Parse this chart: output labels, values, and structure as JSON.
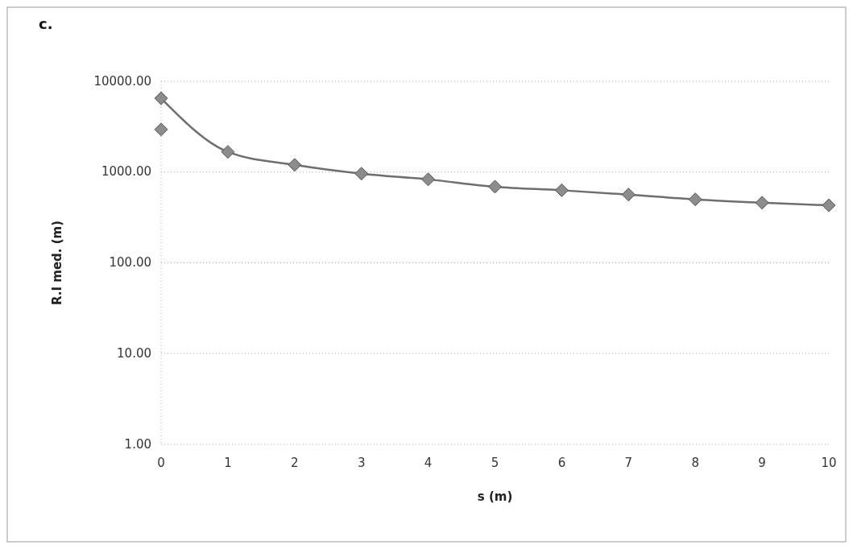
{
  "chart_data": {
    "type": "line",
    "title": "c.",
    "xlabel": "s (m)",
    "ylabel": "R.I med. (m)",
    "series": [
      {
        "color": "#8c8c8c",
        "x": [
          0,
          1,
          2,
          3,
          4,
          5,
          6,
          7,
          8,
          9,
          10
        ],
        "values": [
          6500,
          1670,
          1200,
          960,
          830,
          690,
          630,
          565,
          500,
          460,
          430
        ]
      },
      {
        "type": "scatter",
        "color": "#8c8c8c",
        "x": [
          0
        ],
        "values": [
          2950
        ]
      }
    ],
    "xlim": [
      0,
      10
    ],
    "xticks": [
      0,
      1,
      2,
      3,
      4,
      5,
      6,
      7,
      8,
      9,
      10
    ],
    "ylim": [
      1,
      10000
    ],
    "yticks": [
      {
        "value": 1,
        "label": "1.00"
      },
      {
        "value": 10,
        "label": "10.00"
      },
      {
        "value": 100,
        "label": "100.00"
      },
      {
        "value": 1000,
        "label": "1000.00"
      },
      {
        "value": 10000,
        "label": "10000.00"
      }
    ],
    "log": "y",
    "grid": "y",
    "marker": "diamond",
    "line_style": "solid"
  }
}
